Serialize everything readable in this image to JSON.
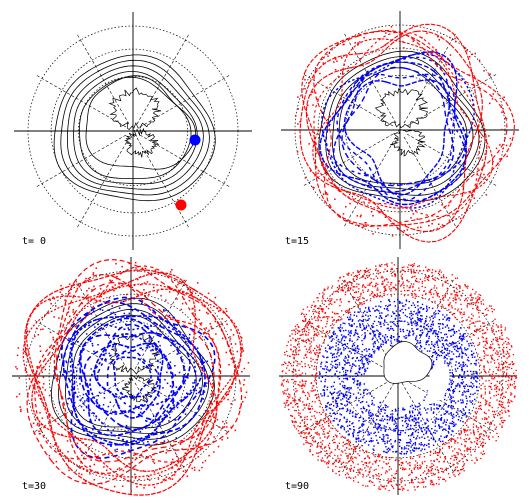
{
  "panels": [
    {
      "label": "t= 0"
    },
    {
      "label": "t=15"
    },
    {
      "label": "t=30"
    },
    {
      "label": "t=90"
    }
  ],
  "colors": {
    "axes": "#000000",
    "contours": "#000000",
    "tracer_red": "#ff0000",
    "tracer_blue": "#0000ff"
  }
}
